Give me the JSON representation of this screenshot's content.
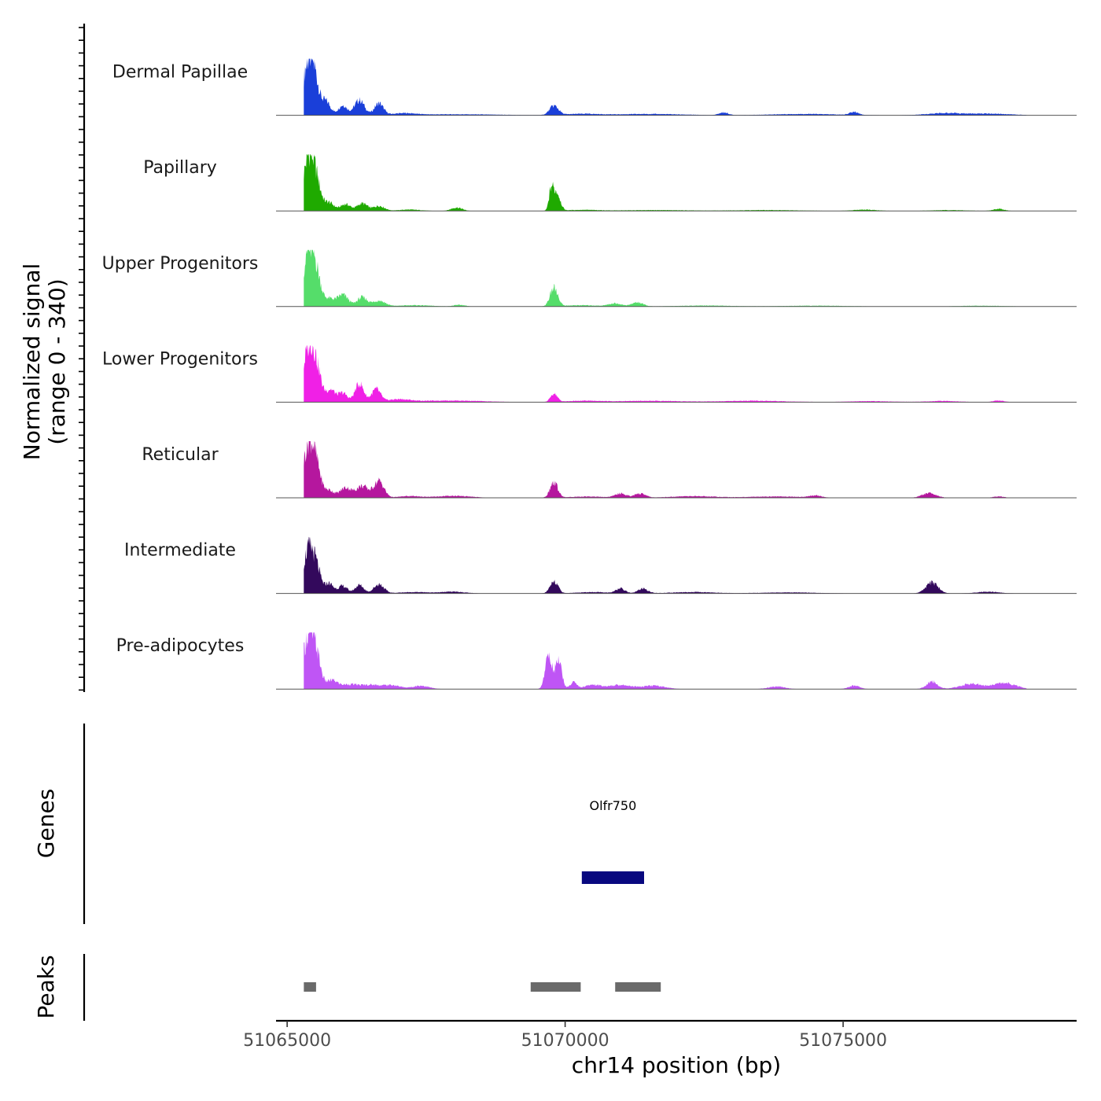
{
  "chart_data": {
    "type": "area",
    "title": "",
    "chromosome": "chr14",
    "xlabel": "chr14 position (bp)",
    "ylabel": "Normalized signal",
    "ylabel_range": "(range 0 - 340)",
    "xlim": [
      51064800,
      51079200
    ],
    "ylim": [
      0,
      340
    ],
    "x_ticks": [
      51065000,
      51070000,
      51075000
    ],
    "x_tick_labels": [
      "51065000",
      "51070000",
      "51075000"
    ],
    "series": [
      {
        "name": "Dermal Papillae",
        "color": "#1a3fd9",
        "peaks": [
          [
            51065300,
            0,
            120
          ],
          [
            51065400,
            340,
            110
          ],
          [
            51065520,
            60,
            60
          ],
          [
            51065700,
            80,
            80
          ],
          [
            51066000,
            60,
            80
          ],
          [
            51066300,
            90,
            90
          ],
          [
            51066650,
            70,
            80
          ],
          [
            51067100,
            10,
            200
          ],
          [
            51068000,
            6,
            800
          ],
          [
            51069800,
            55,
            80
          ],
          [
            51070300,
            8,
            300
          ],
          [
            51071500,
            8,
            600
          ],
          [
            51072850,
            16,
            80
          ],
          [
            51074300,
            8,
            600
          ],
          [
            51075200,
            18,
            80
          ],
          [
            51076800,
            12,
            300
          ],
          [
            51077600,
            10,
            400
          ]
        ]
      },
      {
        "name": "Papillary",
        "color": "#1faa00",
        "peaks": [
          [
            51065300,
            0,
            100
          ],
          [
            51065400,
            340,
            110
          ],
          [
            51065550,
            70,
            70
          ],
          [
            51065750,
            50,
            90
          ],
          [
            51066050,
            40,
            90
          ],
          [
            51066350,
            45,
            90
          ],
          [
            51066650,
            30,
            100
          ],
          [
            51067200,
            8,
            200
          ],
          [
            51068050,
            20,
            100
          ],
          [
            51069750,
            120,
            40
          ],
          [
            51069850,
            110,
            60
          ],
          [
            51070300,
            6,
            300
          ],
          [
            51071600,
            5,
            600
          ],
          [
            51073600,
            5,
            600
          ],
          [
            51075400,
            8,
            200
          ],
          [
            51076900,
            5,
            300
          ],
          [
            51077800,
            12,
            100
          ]
        ]
      },
      {
        "name": "Upper Progenitors",
        "color": "#55dd6a",
        "peaks": [
          [
            51065300,
            0,
            100
          ],
          [
            51065400,
            340,
            110
          ],
          [
            51065550,
            90,
            70
          ],
          [
            51065750,
            45,
            90
          ],
          [
            51066000,
            70,
            100
          ],
          [
            51066350,
            55,
            90
          ],
          [
            51066650,
            35,
            110
          ],
          [
            51067300,
            8,
            300
          ],
          [
            51068100,
            10,
            100
          ],
          [
            51069800,
            110,
            70
          ],
          [
            51070300,
            8,
            300
          ],
          [
            51070900,
            18,
            120
          ],
          [
            51071300,
            25,
            100
          ],
          [
            51072500,
            6,
            500
          ],
          [
            51074500,
            5,
            600
          ],
          [
            51077500,
            5,
            400
          ]
        ]
      },
      {
        "name": "Lower Progenitors",
        "color": "#f020e6",
        "peaks": [
          [
            51065300,
            0,
            100
          ],
          [
            51065400,
            340,
            110
          ],
          [
            51065550,
            100,
            80
          ],
          [
            51065780,
            75,
            80
          ],
          [
            51066000,
            55,
            80
          ],
          [
            51066300,
            110,
            80
          ],
          [
            51066600,
            75,
            80
          ],
          [
            51067000,
            15,
            200
          ],
          [
            51067900,
            10,
            600
          ],
          [
            51069800,
            50,
            60
          ],
          [
            51070300,
            8,
            300
          ],
          [
            51071500,
            8,
            600
          ],
          [
            51073400,
            8,
            600
          ],
          [
            51075500,
            6,
            400
          ],
          [
            51076800,
            7,
            300
          ],
          [
            51077800,
            10,
            100
          ]
        ]
      },
      {
        "name": "Reticular",
        "color": "#b5179e",
        "peaks": [
          [
            51065300,
            0,
            100
          ],
          [
            51065400,
            340,
            110
          ],
          [
            51065550,
            80,
            70
          ],
          [
            51065750,
            45,
            90
          ],
          [
            51066050,
            60,
            100
          ],
          [
            51066350,
            70,
            110
          ],
          [
            51066650,
            100,
            90
          ],
          [
            51067200,
            10,
            200
          ],
          [
            51068000,
            12,
            300
          ],
          [
            51069800,
            90,
            70
          ],
          [
            51070400,
            8,
            300
          ],
          [
            51071000,
            25,
            100
          ],
          [
            51071350,
            25,
            100
          ],
          [
            51072300,
            10,
            400
          ],
          [
            51073800,
            8,
            500
          ],
          [
            51074500,
            12,
            100
          ],
          [
            51076550,
            28,
            130
          ],
          [
            51077800,
            8,
            100
          ]
        ]
      },
      {
        "name": "Intermediate",
        "color": "#33095c",
        "peaks": [
          [
            51065300,
            0,
            100
          ],
          [
            51065400,
            280,
            110
          ],
          [
            51065550,
            60,
            60
          ],
          [
            51065750,
            60,
            80
          ],
          [
            51066000,
            45,
            80
          ],
          [
            51066300,
            50,
            80
          ],
          [
            51066650,
            55,
            90
          ],
          [
            51067300,
            8,
            300
          ],
          [
            51068000,
            10,
            200
          ],
          [
            51069800,
            75,
            70
          ],
          [
            51070500,
            8,
            300
          ],
          [
            51071000,
            28,
            80
          ],
          [
            51071400,
            28,
            90
          ],
          [
            51072300,
            8,
            400
          ],
          [
            51074000,
            6,
            500
          ],
          [
            51076600,
            65,
            110
          ],
          [
            51077600,
            10,
            200
          ]
        ]
      },
      {
        "name": "Pre-adipocytes",
        "color": "#bf55f5",
        "peaks": [
          [
            51065300,
            0,
            100
          ],
          [
            51065400,
            340,
            110
          ],
          [
            51065550,
            90,
            70
          ],
          [
            51065800,
            50,
            100
          ],
          [
            51066100,
            25,
            150
          ],
          [
            51066500,
            25,
            200
          ],
          [
            51066900,
            20,
            150
          ],
          [
            51067400,
            20,
            150
          ],
          [
            51069700,
            200,
            60
          ],
          [
            51069880,
            170,
            60
          ],
          [
            51070150,
            40,
            60
          ],
          [
            51070500,
            25,
            150
          ],
          [
            51071000,
            25,
            200
          ],
          [
            51071600,
            20,
            200
          ],
          [
            51073800,
            15,
            150
          ],
          [
            51075200,
            20,
            100
          ],
          [
            51076600,
            45,
            100
          ],
          [
            51077300,
            30,
            200
          ],
          [
            51077900,
            35,
            200
          ]
        ]
      }
    ],
    "genes_track": {
      "label": "Genes",
      "genes": [
        {
          "name": "Olfr750",
          "start": 51070300,
          "end": 51071420,
          "color": "#08087f"
        }
      ]
    },
    "peaks_track": {
      "label": "Peaks",
      "color": "#6a6a6a",
      "peaks": [
        [
          51065300,
          51065520
        ],
        [
          51069380,
          51070280
        ],
        [
          51070900,
          51071720
        ]
      ]
    }
  }
}
